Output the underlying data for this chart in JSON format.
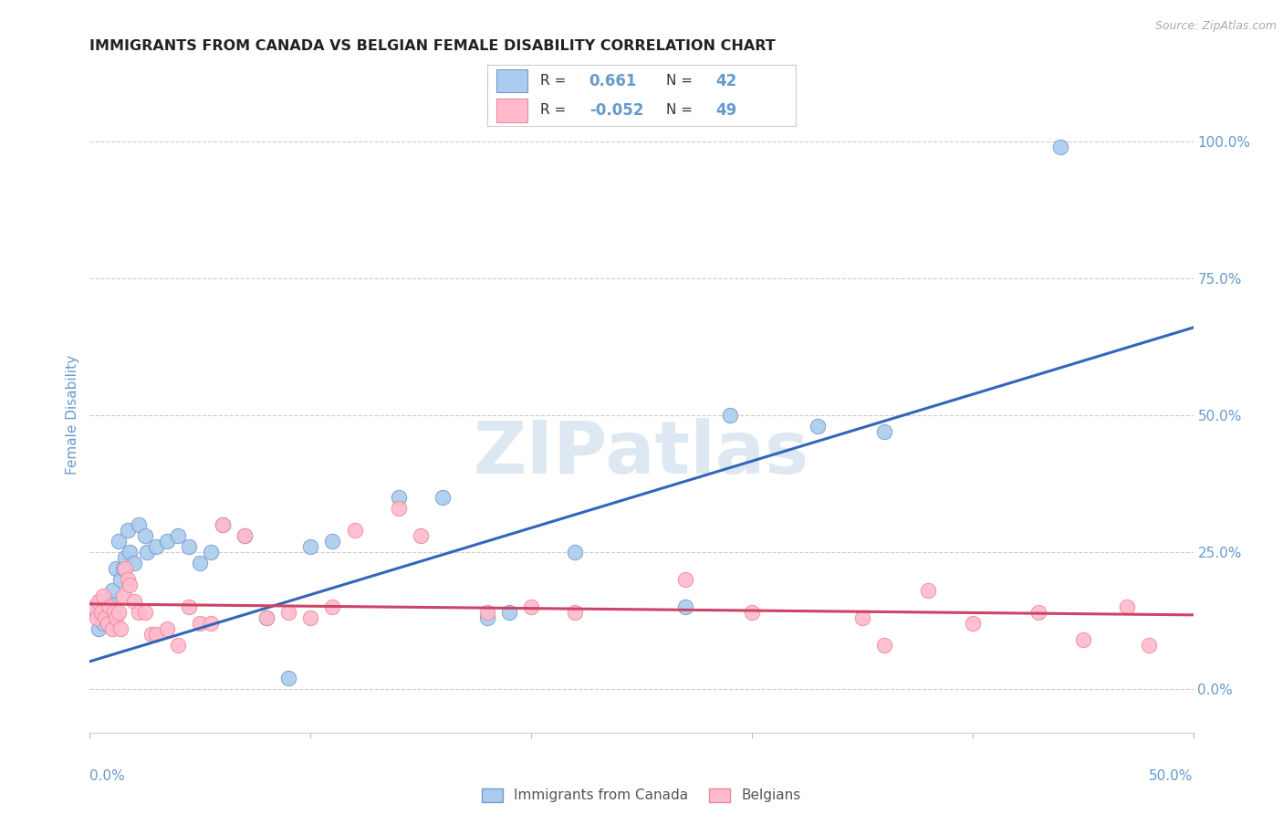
{
  "title": "IMMIGRANTS FROM CANADA VS BELGIAN FEMALE DISABILITY CORRELATION CHART",
  "source": "Source: ZipAtlas.com",
  "ylabel": "Female Disability",
  "ytick_labels": [
    "0.0%",
    "25.0%",
    "50.0%",
    "75.0%",
    "100.0%"
  ],
  "ytick_values": [
    0,
    25,
    50,
    75,
    100
  ],
  "xlim": [
    0,
    50
  ],
  "ylim": [
    -8,
    108
  ],
  "watermark": "ZIPatlas",
  "blue_line": {
    "x0": 0,
    "y0": 5,
    "x1": 50,
    "y1": 66
  },
  "pink_line": {
    "x0": 0,
    "y0": 15.5,
    "x1": 50,
    "y1": 13.5
  },
  "blue_scatter": [
    [
      0.3,
      14
    ],
    [
      0.4,
      11
    ],
    [
      0.5,
      13
    ],
    [
      0.6,
      12
    ],
    [
      0.7,
      15
    ],
    [
      0.8,
      14
    ],
    [
      0.9,
      16
    ],
    [
      1.0,
      18
    ],
    [
      1.1,
      13
    ],
    [
      1.2,
      22
    ],
    [
      1.3,
      27
    ],
    [
      1.4,
      20
    ],
    [
      1.5,
      22
    ],
    [
      1.6,
      24
    ],
    [
      1.7,
      29
    ],
    [
      1.8,
      25
    ],
    [
      2.0,
      23
    ],
    [
      2.2,
      30
    ],
    [
      2.5,
      28
    ],
    [
      2.6,
      25
    ],
    [
      3.0,
      26
    ],
    [
      3.5,
      27
    ],
    [
      4.0,
      28
    ],
    [
      4.5,
      26
    ],
    [
      5.0,
      23
    ],
    [
      5.5,
      25
    ],
    [
      6.0,
      30
    ],
    [
      7.0,
      28
    ],
    [
      8.0,
      13
    ],
    [
      9.0,
      2
    ],
    [
      10.0,
      26
    ],
    [
      11.0,
      27
    ],
    [
      14.0,
      35
    ],
    [
      16.0,
      35
    ],
    [
      18.0,
      13
    ],
    [
      19.0,
      14
    ],
    [
      22.0,
      25
    ],
    [
      27.0,
      15
    ],
    [
      29.0,
      50
    ],
    [
      33.0,
      48
    ],
    [
      36.0,
      47
    ],
    [
      44.0,
      99
    ]
  ],
  "pink_scatter": [
    [
      0.2,
      15
    ],
    [
      0.3,
      13
    ],
    [
      0.4,
      16
    ],
    [
      0.5,
      14
    ],
    [
      0.6,
      17
    ],
    [
      0.7,
      13
    ],
    [
      0.8,
      12
    ],
    [
      0.9,
      15
    ],
    [
      1.0,
      11
    ],
    [
      1.1,
      14
    ],
    [
      1.2,
      13
    ],
    [
      1.3,
      14
    ],
    [
      1.4,
      11
    ],
    [
      1.5,
      17
    ],
    [
      1.6,
      22
    ],
    [
      1.7,
      20
    ],
    [
      1.8,
      19
    ],
    [
      2.0,
      16
    ],
    [
      2.2,
      14
    ],
    [
      2.5,
      14
    ],
    [
      2.8,
      10
    ],
    [
      3.0,
      10
    ],
    [
      3.5,
      11
    ],
    [
      4.0,
      8
    ],
    [
      4.5,
      15
    ],
    [
      5.0,
      12
    ],
    [
      5.5,
      12
    ],
    [
      6.0,
      30
    ],
    [
      7.0,
      28
    ],
    [
      8.0,
      13
    ],
    [
      9.0,
      14
    ],
    [
      10.0,
      13
    ],
    [
      11.0,
      15
    ],
    [
      12.0,
      29
    ],
    [
      14.0,
      33
    ],
    [
      15.0,
      28
    ],
    [
      18.0,
      14
    ],
    [
      20.0,
      15
    ],
    [
      22.0,
      14
    ],
    [
      27.0,
      20
    ],
    [
      30.0,
      14
    ],
    [
      35.0,
      13
    ],
    [
      36.0,
      8
    ],
    [
      38.0,
      18
    ],
    [
      40.0,
      12
    ],
    [
      43.0,
      14
    ],
    [
      45.0,
      9
    ],
    [
      47.0,
      15
    ],
    [
      48.0,
      8
    ]
  ],
  "background_color": "#ffffff",
  "grid_color": "#cccccc",
  "title_color": "#222222",
  "axis_label_color": "#6699cc",
  "tick_label_color": "#6699cc",
  "scatter_blue_face": "#aaccee",
  "scatter_blue_edge": "#7799cc",
  "scatter_pink_face": "#ffbbcc",
  "scatter_pink_edge": "#ee8899",
  "line_blue": "#3366bb",
  "line_pink": "#cc4466"
}
